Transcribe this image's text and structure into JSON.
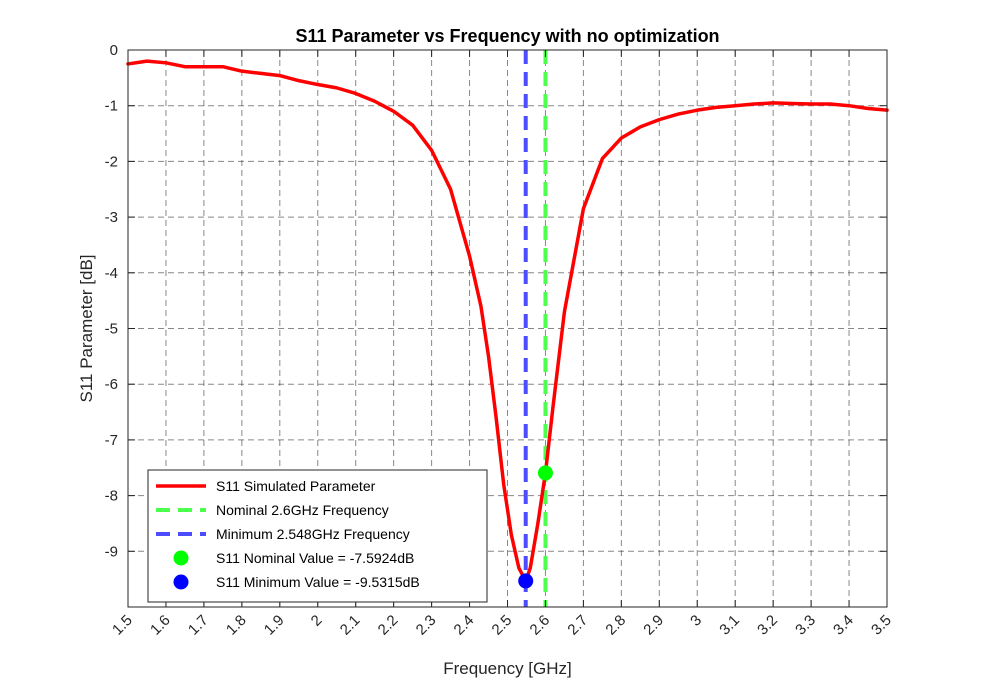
{
  "chart_data": {
    "type": "line",
    "title": "S11 Parameter vs Frequency with no optimization",
    "xlabel": "Frequency [GHz]",
    "ylabel": "S11 Parameter [dB]",
    "xlim": [
      1.5,
      3.5
    ],
    "ylim": [
      -10,
      0
    ],
    "x_ticks": [
      1.5,
      1.6,
      1.7,
      1.8,
      1.9,
      2.0,
      2.1,
      2.2,
      2.3,
      2.4,
      2.5,
      2.6,
      2.7,
      2.8,
      2.9,
      3.0,
      3.1,
      3.2,
      3.3,
      3.4,
      3.5
    ],
    "x_tick_labels": [
      "1.5",
      "1.6",
      "1.7",
      "1.8",
      "1.9",
      "2",
      "2.1",
      "2.2",
      "2.3",
      "2.4",
      "2.5",
      "2.6",
      "2.7",
      "2.8",
      "2.9",
      "3",
      "3.1",
      "3.2",
      "3.3",
      "3.4",
      "3.5"
    ],
    "y_ticks": [
      0,
      -1,
      -2,
      -3,
      -4,
      -5,
      -6,
      -7,
      -8,
      -9
    ],
    "y_tick_labels": [
      "0",
      "-1",
      "-2",
      "-3",
      "-4",
      "-5",
      "-6",
      "-7",
      "-8",
      "-9"
    ],
    "grid": true,
    "legend_position": "bottom-left",
    "series": [
      {
        "name": "S11 Simulated Parameter",
        "kind": "line",
        "color": "#ff0000",
        "x": [
          1.5,
          1.55,
          1.6,
          1.65,
          1.7,
          1.75,
          1.8,
          1.85,
          1.9,
          1.95,
          2.0,
          2.05,
          2.1,
          2.15,
          2.2,
          2.25,
          2.3,
          2.35,
          2.4,
          2.43,
          2.45,
          2.47,
          2.49,
          2.51,
          2.53,
          2.548,
          2.56,
          2.58,
          2.6,
          2.62,
          2.65,
          2.7,
          2.75,
          2.8,
          2.85,
          2.9,
          2.95,
          3.0,
          3.05,
          3.1,
          3.15,
          3.2,
          3.25,
          3.3,
          3.35,
          3.4,
          3.45,
          3.5
        ],
        "y": [
          -0.25,
          -0.2,
          -0.23,
          -0.3,
          -0.3,
          -0.3,
          -0.38,
          -0.42,
          -0.46,
          -0.55,
          -0.62,
          -0.68,
          -0.78,
          -0.92,
          -1.1,
          -1.35,
          -1.8,
          -2.5,
          -3.7,
          -4.6,
          -5.5,
          -6.6,
          -7.8,
          -8.7,
          -9.3,
          -9.5315,
          -9.3,
          -8.5,
          -7.5924,
          -6.4,
          -4.7,
          -2.85,
          -1.95,
          -1.58,
          -1.38,
          -1.25,
          -1.15,
          -1.08,
          -1.03,
          -1.0,
          -0.97,
          -0.95,
          -0.96,
          -0.97,
          -0.97,
          -1.0,
          -1.05,
          -1.08
        ]
      },
      {
        "name": "Nominal 2.6GHz Frequency",
        "kind": "vline",
        "color": "#4dff4d",
        "x": 2.6
      },
      {
        "name": "Minimum 2.548GHz Frequency",
        "kind": "vline",
        "color": "#4d4dff",
        "x": 2.548
      },
      {
        "name": "S11 Nominal Value = -7.5924dB",
        "kind": "point",
        "color": "#00ff00",
        "x": 2.6,
        "y": -7.5924
      },
      {
        "name": "S11 Minimum Value = -9.5315dB",
        "kind": "point",
        "color": "#0000ff",
        "x": 2.548,
        "y": -9.5315
      }
    ]
  }
}
